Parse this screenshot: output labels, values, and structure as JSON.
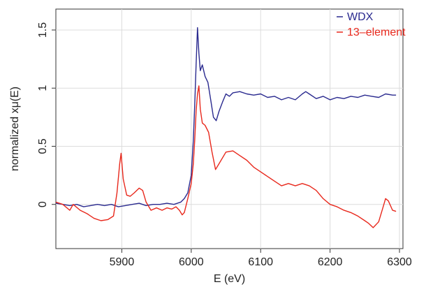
{
  "chart_data": {
    "type": "line",
    "title": "",
    "xlabel": "E (eV)",
    "ylabel": "normalized xμ(E)",
    "xlim": [
      5805,
      6305
    ],
    "ylim": [
      -0.38,
      1.68
    ],
    "xticks": [
      5900,
      6000,
      6100,
      6200,
      6300
    ],
    "yticks": [
      {
        "value": 0,
        "label": "0"
      },
      {
        "value": 0.5,
        "label": "0.5"
      },
      {
        "value": 1,
        "label": "1"
      },
      {
        "value": 1.5,
        "label": "1.5"
      }
    ],
    "grid": true,
    "legend": "top-right",
    "series": [
      {
        "name": "WDX",
        "color": "#2a2a8f",
        "x": [
          5805,
          5815,
          5825,
          5835,
          5845,
          5855,
          5865,
          5875,
          5885,
          5895,
          5905,
          5915,
          5925,
          5935,
          5945,
          5955,
          5965,
          5975,
          5985,
          5990,
          5995,
          6000,
          6003,
          6005,
          6007,
          6009,
          6011,
          6013,
          6016,
          6020,
          6024,
          6028,
          6032,
          6036,
          6040,
          6045,
          6050,
          6055,
          6060,
          6070,
          6080,
          6090,
          6100,
          6110,
          6120,
          6130,
          6140,
          6150,
          6160,
          6165,
          6170,
          6180,
          6190,
          6200,
          6210,
          6220,
          6230,
          6240,
          6250,
          6260,
          6270,
          6280,
          6290,
          6295
        ],
        "y": [
          0.01,
          0.0,
          -0.01,
          0.0,
          -0.02,
          -0.01,
          0.0,
          -0.01,
          0.0,
          -0.02,
          -0.01,
          0.0,
          0.01,
          -0.01,
          0.0,
          0.0,
          0.01,
          0.0,
          0.02,
          0.05,
          0.1,
          0.25,
          0.55,
          0.85,
          1.2,
          1.52,
          1.3,
          1.15,
          1.2,
          1.1,
          1.05,
          0.9,
          0.75,
          0.72,
          0.8,
          0.88,
          0.95,
          0.93,
          0.96,
          0.97,
          0.95,
          0.94,
          0.95,
          0.92,
          0.93,
          0.9,
          0.92,
          0.9,
          0.95,
          0.97,
          0.95,
          0.91,
          0.93,
          0.9,
          0.92,
          0.91,
          0.93,
          0.92,
          0.94,
          0.93,
          0.92,
          0.95,
          0.94,
          0.94
        ]
      },
      {
        "name": "13–element",
        "color": "#e8281c",
        "x": [
          5805,
          5815,
          5825,
          5830,
          5840,
          5850,
          5860,
          5870,
          5880,
          5888,
          5893,
          5897,
          5899,
          5902,
          5907,
          5912,
          5918,
          5925,
          5930,
          5935,
          5942,
          5950,
          5958,
          5965,
          5972,
          5978,
          5983,
          5987,
          5990,
          5995,
          6000,
          6003,
          6005,
          6007,
          6009,
          6011,
          6013,
          6016,
          6020,
          6025,
          6030,
          6035,
          6040,
          6050,
          6060,
          6070,
          6080,
          6090,
          6100,
          6110,
          6120,
          6130,
          6140,
          6150,
          6160,
          6170,
          6180,
          6190,
          6200,
          6210,
          6220,
          6230,
          6240,
          6250,
          6255,
          6262,
          6270,
          6275,
          6280,
          6284,
          6290,
          6295
        ],
        "y": [
          0.02,
          0.0,
          -0.05,
          0.0,
          -0.05,
          -0.08,
          -0.12,
          -0.14,
          -0.13,
          -0.1,
          0.1,
          0.35,
          0.44,
          0.22,
          0.08,
          0.07,
          0.1,
          0.14,
          0.12,
          0.02,
          -0.05,
          -0.03,
          -0.05,
          -0.03,
          -0.04,
          -0.02,
          -0.05,
          -0.09,
          -0.07,
          0.05,
          0.18,
          0.35,
          0.55,
          0.8,
          0.95,
          1.02,
          0.82,
          0.7,
          0.68,
          0.62,
          0.45,
          0.3,
          0.35,
          0.45,
          0.46,
          0.42,
          0.38,
          0.32,
          0.28,
          0.24,
          0.2,
          0.16,
          0.18,
          0.16,
          0.18,
          0.16,
          0.12,
          0.05,
          0.0,
          -0.02,
          -0.05,
          -0.07,
          -0.1,
          -0.14,
          -0.16,
          -0.2,
          -0.15,
          -0.05,
          0.05,
          0.03,
          -0.05,
          -0.06
        ]
      }
    ]
  }
}
